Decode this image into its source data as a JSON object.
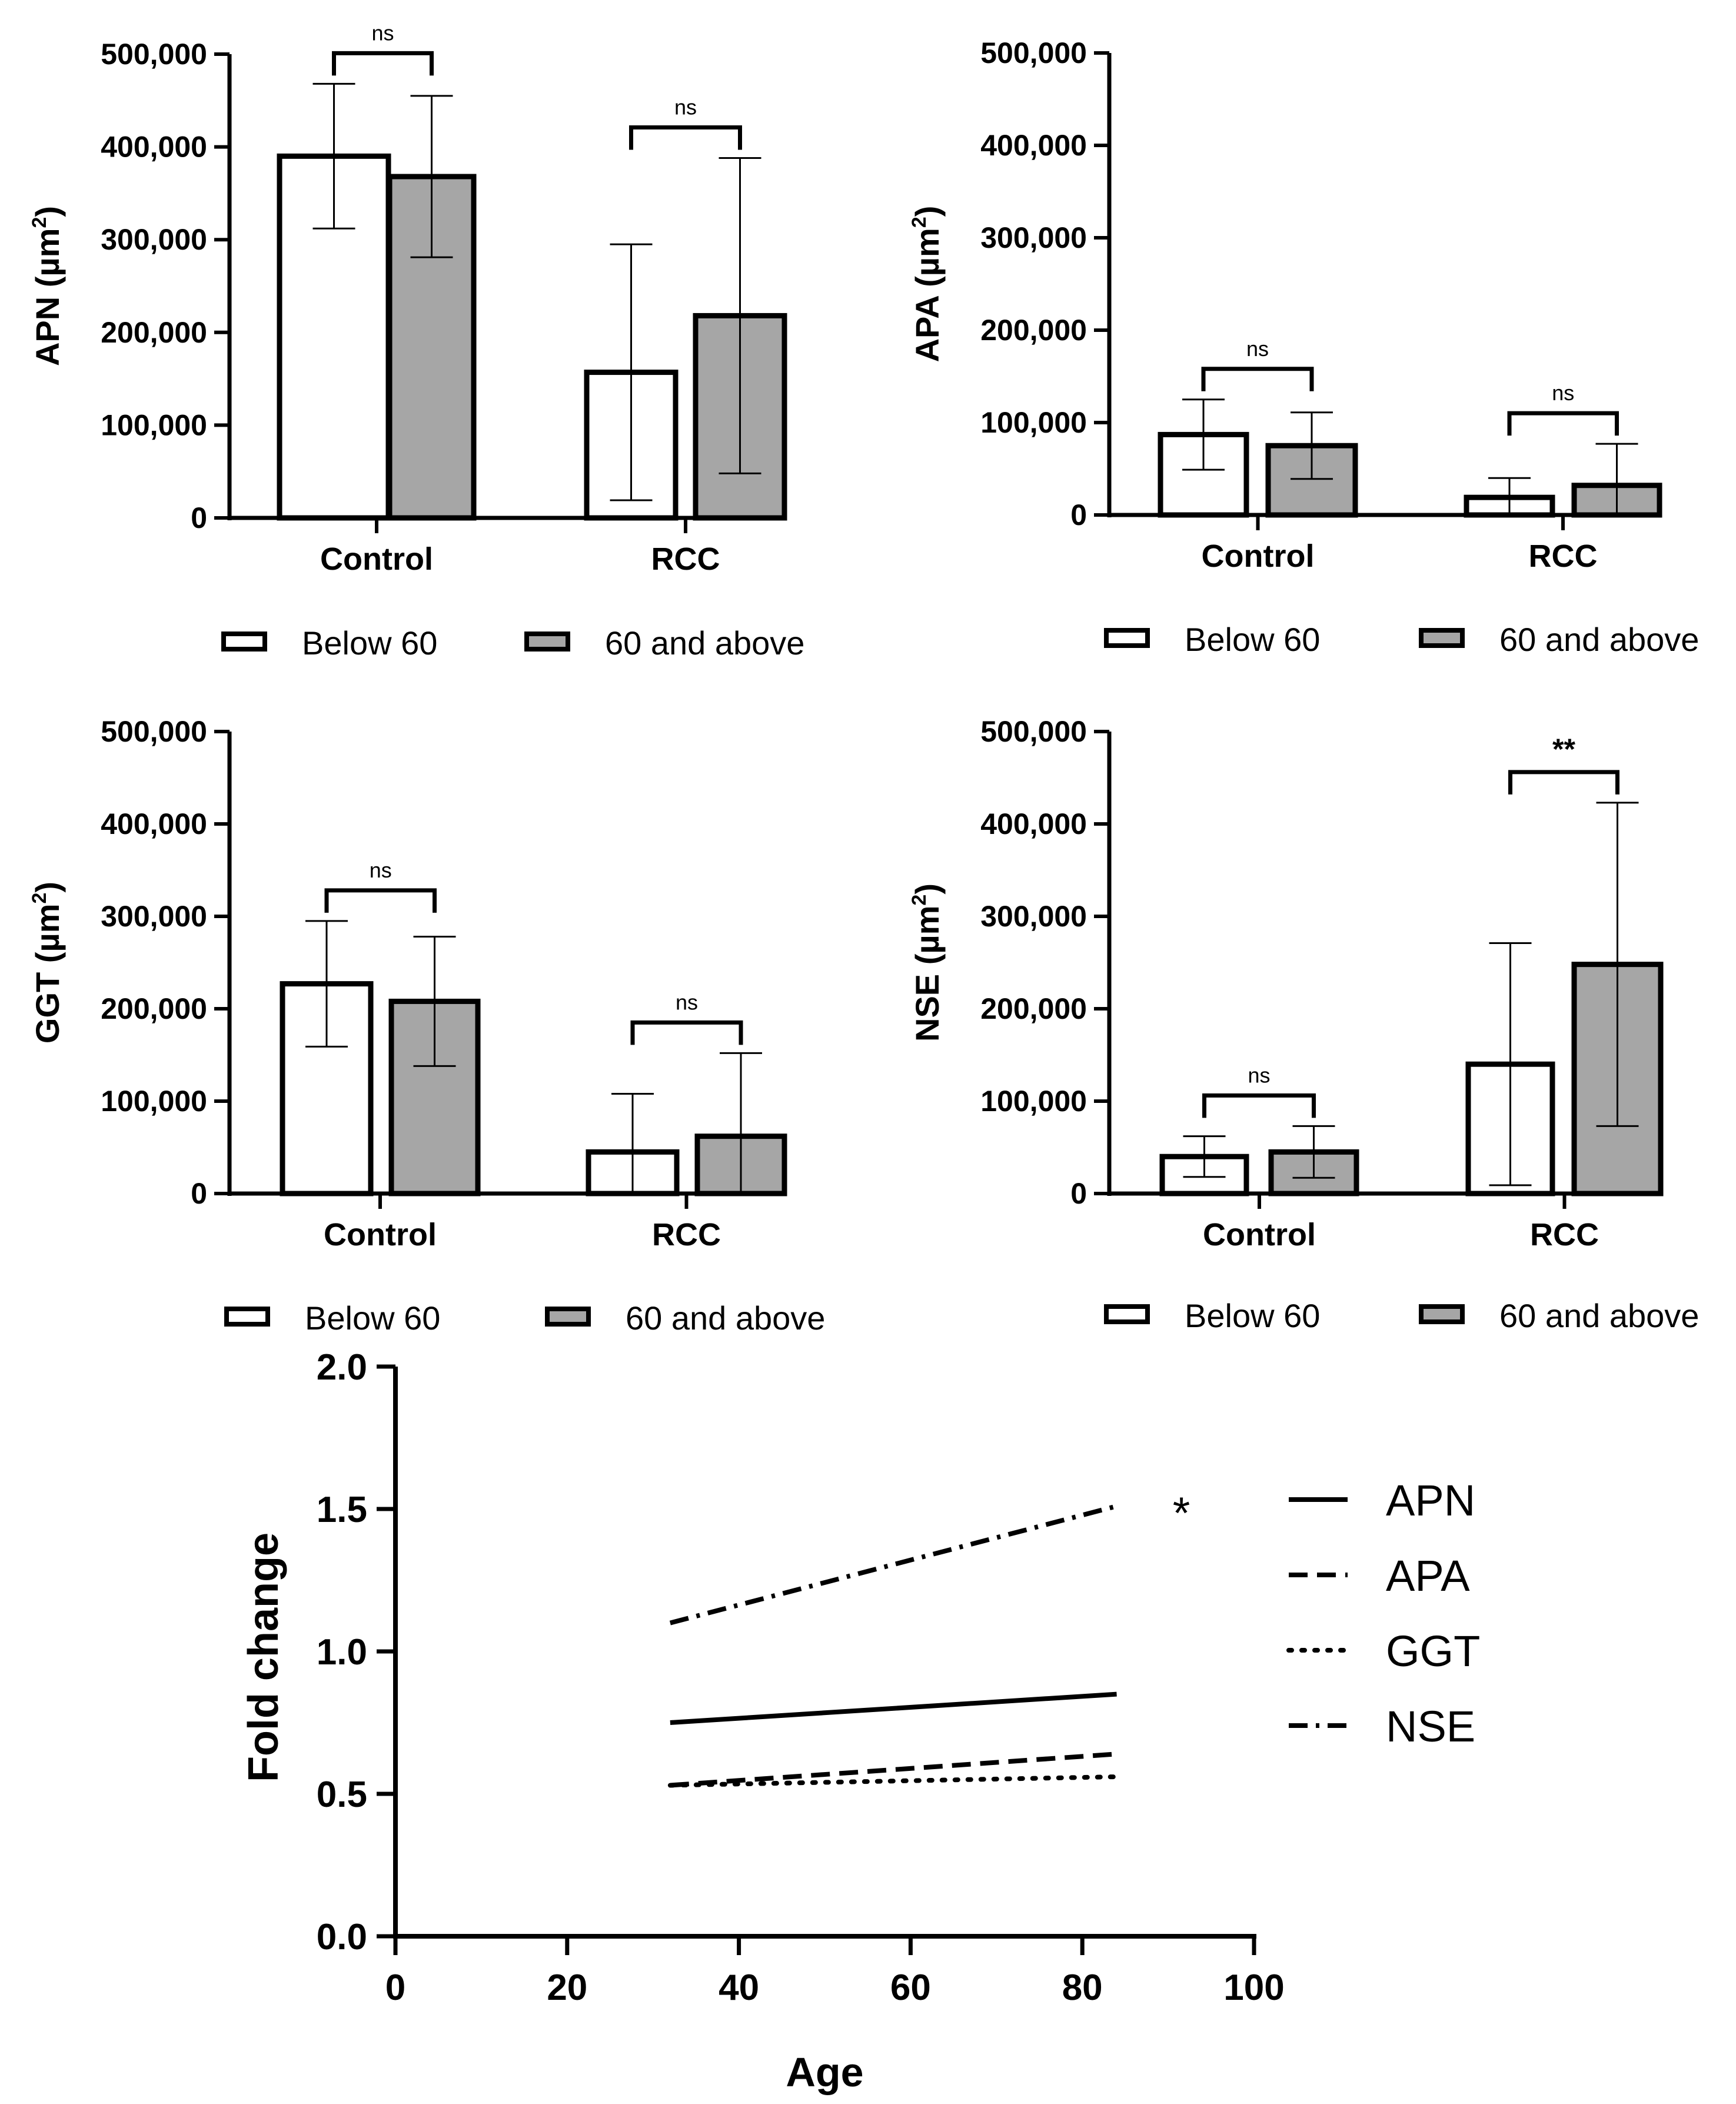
{
  "chart_data": [
    {
      "type": "bar",
      "panel": "APN",
      "ylabel": {
        "main": "APN (µm",
        "sup": "2",
        "close": ")"
      },
      "categories": [
        "Control",
        "RCC"
      ],
      "ylim": [
        0,
        500000
      ],
      "yticks": [
        "0",
        "100,000",
        "200,000",
        "300,000",
        "400,000",
        "500,000"
      ],
      "series": [
        {
          "name": "Below 60",
          "fill": "#ffffff",
          "values": [
            390000,
            157000
          ],
          "err": [
            78000,
            138000
          ]
        },
        {
          "name": "60 and above",
          "fill": "#a6a6a6",
          "values": [
            368000,
            218000
          ],
          "err": [
            87000,
            170000
          ]
        }
      ],
      "significance": [
        "ns",
        "ns"
      ],
      "legend": [
        "Below 60",
        "60 and above"
      ]
    },
    {
      "type": "bar",
      "panel": "APA",
      "ylabel": {
        "main": "APA (µm",
        "sup": "2",
        "close": ")"
      },
      "categories": [
        "Control",
        "RCC"
      ],
      "ylim": [
        0,
        500000
      ],
      "yticks": [
        "0",
        "100,000",
        "200,000",
        "300,000",
        "400,000",
        "500,000"
      ],
      "series": [
        {
          "name": "Below 60",
          "fill": "#ffffff",
          "values": [
            87000,
            19000
          ],
          "err": [
            38000,
            21000
          ]
        },
        {
          "name": "60 and above",
          "fill": "#a6a6a6",
          "values": [
            75000,
            32000
          ],
          "err": [
            36000,
            45000
          ]
        }
      ],
      "significance": [
        "ns",
        "ns"
      ],
      "legend": [
        "Below 60",
        "60 and above"
      ]
    },
    {
      "type": "bar",
      "panel": "GGT",
      "ylabel": {
        "main": "GGT (µm",
        "sup": "2",
        "close": ")"
      },
      "categories": [
        "Control",
        "RCC"
      ],
      "ylim": [
        0,
        500000
      ],
      "yticks": [
        "0",
        "100,000",
        "200,000",
        "300,000",
        "400,000",
        "500,000"
      ],
      "series": [
        {
          "name": "Below 60",
          "fill": "#ffffff",
          "values": [
            227000,
            45000
          ],
          "err": [
            68000,
            63000
          ]
        },
        {
          "name": "60 and above",
          "fill": "#a6a6a6",
          "values": [
            208000,
            62000
          ],
          "err": [
            70000,
            90000
          ]
        }
      ],
      "significance": [
        "ns",
        "ns"
      ],
      "legend": [
        "Below 60",
        "60 and above"
      ]
    },
    {
      "type": "bar",
      "panel": "NSE",
      "ylabel": {
        "main": "NSE (µm",
        "sup": "2",
        "close": ")"
      },
      "categories": [
        "Control",
        "RCC"
      ],
      "ylim": [
        0,
        500000
      ],
      "yticks": [
        "0",
        "100,000",
        "200,000",
        "300,000",
        "400,000",
        "500,000"
      ],
      "series": [
        {
          "name": "Below 60",
          "fill": "#ffffff",
          "values": [
            40000,
            140000
          ],
          "err": [
            22000,
            131000
          ]
        },
        {
          "name": "60 and above",
          "fill": "#a6a6a6",
          "values": [
            45000,
            248000
          ],
          "err": [
            28000,
            175000
          ]
        }
      ],
      "significance": [
        "ns",
        "**"
      ],
      "legend": [
        "Below 60",
        "60 and above"
      ]
    },
    {
      "type": "line",
      "panel": "fold-change",
      "xlabel": "Age",
      "ylabel": "Fold change",
      "xlim": [
        0,
        100
      ],
      "ylim": [
        0,
        2.0
      ],
      "xticks": [
        "0",
        "20",
        "40",
        "60",
        "80",
        "100"
      ],
      "yticks": [
        "0.0",
        "0.5",
        "1.0",
        "1.5",
        "2.0"
      ],
      "series": [
        {
          "name": "APN",
          "style": "solid",
          "x": [
            32,
            84
          ],
          "y": [
            0.75,
            0.85
          ]
        },
        {
          "name": "APA",
          "style": "dashed",
          "x": [
            32,
            84
          ],
          "y": [
            0.53,
            0.64
          ]
        },
        {
          "name": "GGT",
          "style": "dotted",
          "x": [
            32,
            84
          ],
          "y": [
            0.53,
            0.56
          ]
        },
        {
          "name": "NSE",
          "style": "dashdot",
          "x": [
            32,
            84
          ],
          "y": [
            1.1,
            1.51
          ]
        }
      ],
      "annotation": "*"
    }
  ]
}
